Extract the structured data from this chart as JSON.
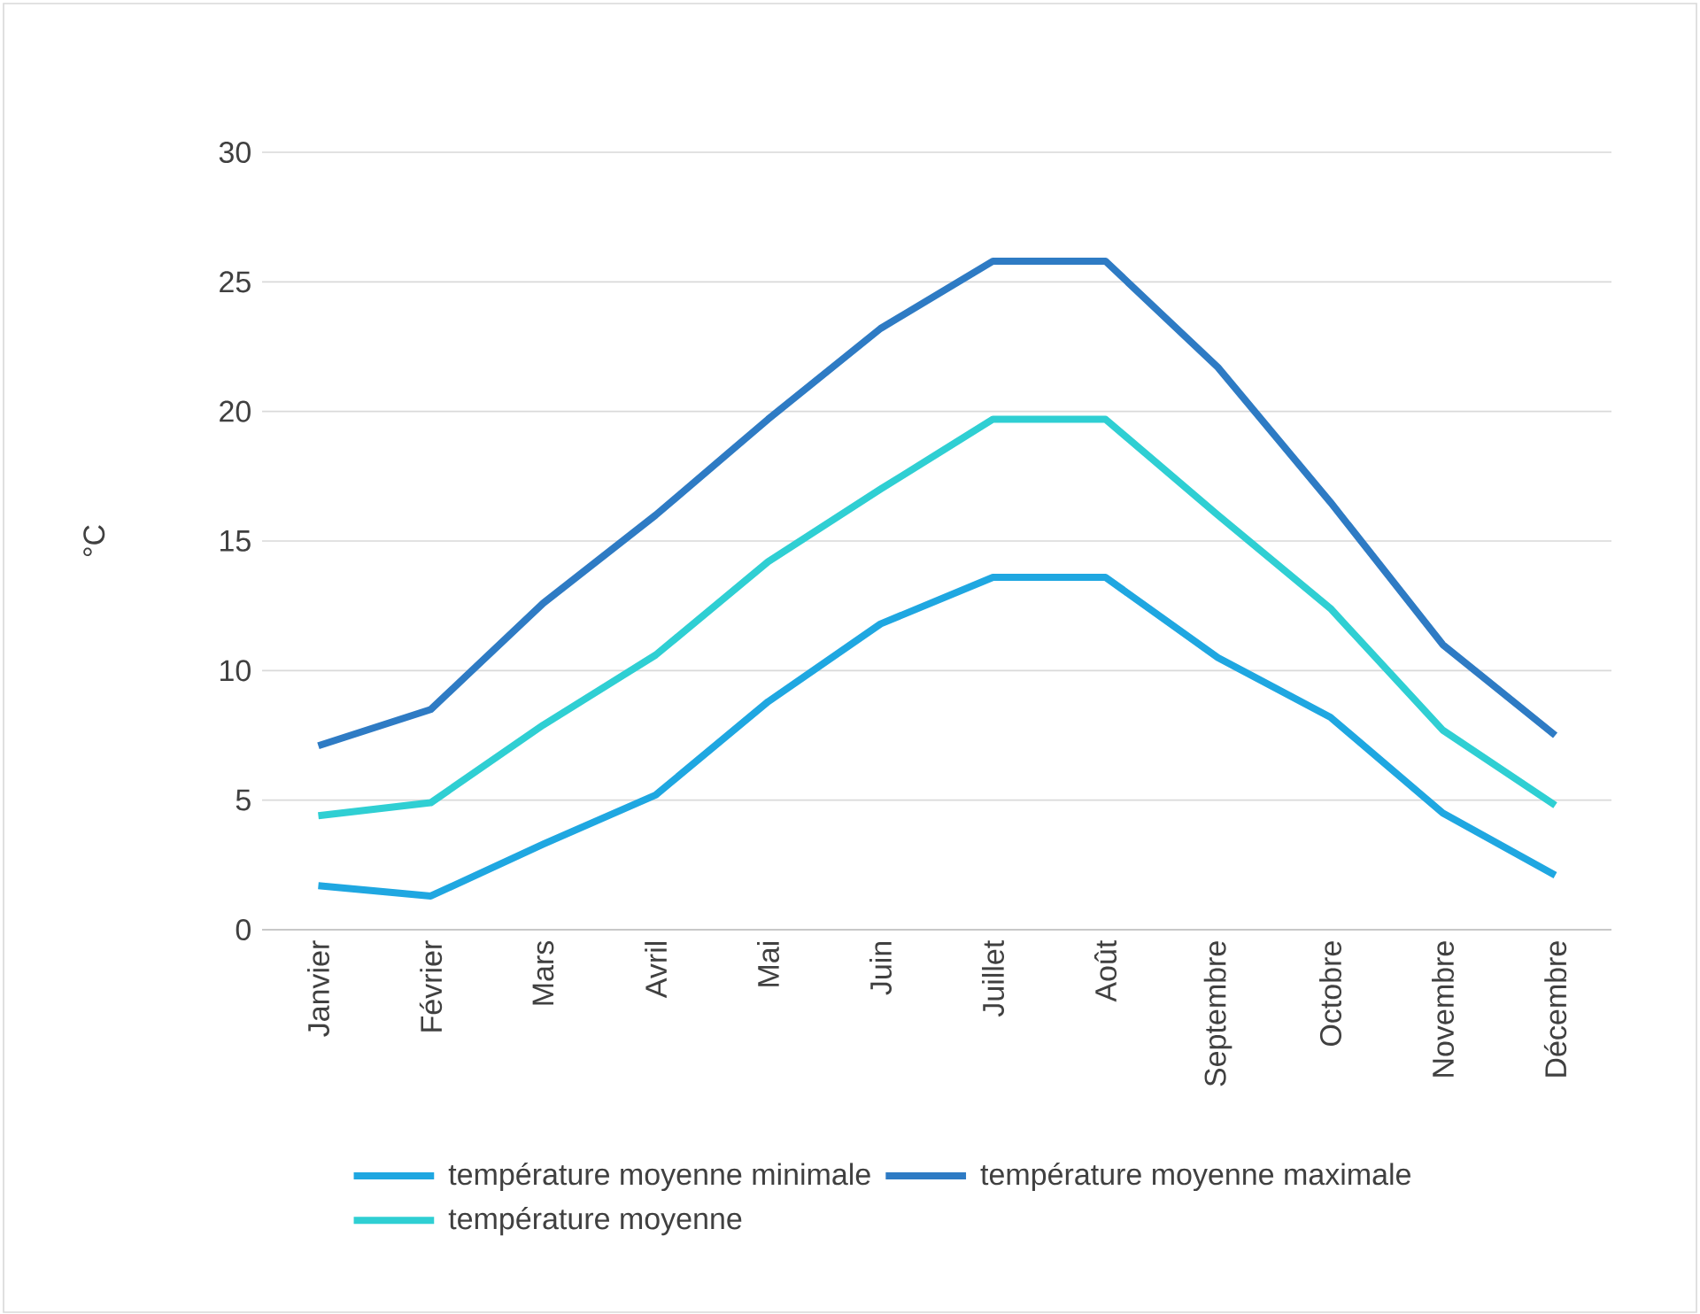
{
  "chart_data": {
    "type": "line",
    "ylabel": "°C",
    "categories": [
      "Janvier",
      "Février",
      "Mars",
      "Avril",
      "Mai",
      "Juin",
      "Juillet",
      "Août",
      "Septembre",
      "Octobre",
      "Novembre",
      "Décembre"
    ],
    "series": [
      {
        "name": "température moyenne minimale",
        "color": "#1fa7e1",
        "values": [
          1.7,
          1.3,
          3.3,
          5.2,
          8.8,
          11.8,
          13.6,
          13.6,
          10.5,
          8.2,
          4.5,
          2.1
        ]
      },
      {
        "name": "température moyenne maximale",
        "color": "#2e7bc4",
        "values": [
          7.1,
          8.5,
          12.6,
          16.0,
          19.7,
          23.2,
          25.8,
          25.8,
          21.7,
          16.5,
          11.0,
          7.5
        ]
      },
      {
        "name": "température moyenne",
        "color": "#2fcfd3",
        "values": [
          4.4,
          4.9,
          7.9,
          10.6,
          14.2,
          17.0,
          19.7,
          19.7,
          16.0,
          12.4,
          7.7,
          4.8
        ]
      }
    ],
    "ylim": [
      0,
      30
    ],
    "yticks": [
      0,
      5,
      10,
      15,
      20,
      25,
      30
    ],
    "grid": "y",
    "legend": "bottom",
    "marker": "none",
    "line_style": "solid"
  }
}
